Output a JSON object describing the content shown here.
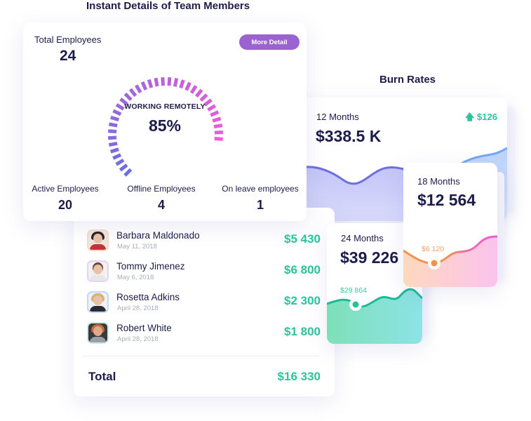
{
  "team_section": {
    "title": "Instant Details of Team Members",
    "total_employees_label": "Total Employees",
    "total_employees_value": "24",
    "more_detail_button": "More Detail",
    "gauge": {
      "label": "WORKING REMOTELY",
      "value": "85%",
      "percent": 85,
      "color_start": "#6c6fe0",
      "color_end": "#f05bd8"
    },
    "stats": [
      {
        "label": "Active Employees",
        "value": "20"
      },
      {
        "label": "Offline Employees",
        "value": "4"
      },
      {
        "label": "On leave employees",
        "value": "1"
      }
    ]
  },
  "payroll_list": {
    "rows": [
      {
        "name": "Barbara Maldonado",
        "date": "May 11, 2018",
        "amount": "$5 430",
        "avatar_border": "#fbd9c0"
      },
      {
        "name": "Tommy Jimenez",
        "date": "May 6, 2018",
        "amount": "$6 800",
        "avatar_border": "#e3d3f6"
      },
      {
        "name": "Rosetta Adkins",
        "date": "April 28, 2018",
        "amount": "$2 300",
        "avatar_border": "#c6d6f8"
      },
      {
        "name": "Robert White",
        "date": "April 28, 2018",
        "amount": "$1 800",
        "avatar_border": "#c4efe0"
      }
    ],
    "total_label": "Total",
    "total_value": "$16 330",
    "amount_color": "#2ac59c"
  },
  "burn_rates": {
    "title": "Burn Rates",
    "cards": {
      "m12": {
        "label": "12 Months",
        "value": "$338.5 K",
        "delta": "$126",
        "delta_icon": "arrow-up-icon"
      },
      "m18": {
        "label": "18 Months",
        "value": "$12 564",
        "marker": "$6 120"
      },
      "m24": {
        "label": "24 Months",
        "value": "$39 226",
        "marker": "$29 864"
      }
    }
  }
}
